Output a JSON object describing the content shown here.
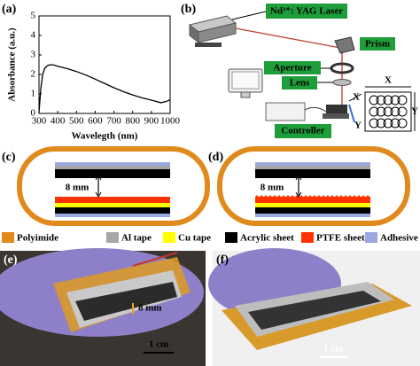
{
  "chart_data": {
    "type": "line",
    "xlabel": "Wavelegth (nm)",
    "ylabel": "Absorbance (a.u.)",
    "x": [
      300,
      310,
      320,
      330,
      345,
      360,
      380,
      400,
      450,
      500,
      550,
      600,
      650,
      700,
      750,
      800,
      850,
      900,
      950,
      975,
      1000
    ],
    "values": [
      0.05,
      1.3,
      2.0,
      2.3,
      2.45,
      2.5,
      2.48,
      2.42,
      2.3,
      2.15,
      1.97,
      1.76,
      1.54,
      1.32,
      1.12,
      0.95,
      0.8,
      0.68,
      0.55,
      0.6,
      0.7
    ],
    "color": "#000000",
    "xlim": [
      300,
      1000
    ],
    "xticks": [
      300,
      400,
      500,
      600,
      700,
      800,
      900,
      1000
    ],
    "ylim": [
      0,
      5
    ],
    "yticks": [
      0,
      1,
      2,
      3,
      4,
      5
    ]
  },
  "panel_labels": [
    "(a)",
    "(b)",
    "(c)",
    "(d)",
    "(e)",
    "(f)"
  ],
  "setup": {
    "laser": "Nd³⁺: YAG Laser",
    "prism": "Prism",
    "aperture": "Aperture",
    "lens": "Lens",
    "controller": "Controller",
    "axis_x": "X",
    "axis_y": "Y"
  },
  "diagrams": {
    "gap": "8 mm"
  },
  "legend": [
    {
      "name": "Polyimide",
      "color": "#e08a1e"
    },
    {
      "name": "Al tape",
      "color": "#a6a6a6"
    },
    {
      "name": "Cu tape",
      "color": "#ffff00"
    },
    {
      "name": "Acrylic sheet",
      "color": "#000000"
    },
    {
      "name": "PTFE sheet",
      "color": "#ff3300"
    },
    {
      "name": "Adhesive tape",
      "color": "#9aa8e0"
    }
  ],
  "photos": {
    "gap": "8 mm",
    "scale": "1 cm"
  }
}
